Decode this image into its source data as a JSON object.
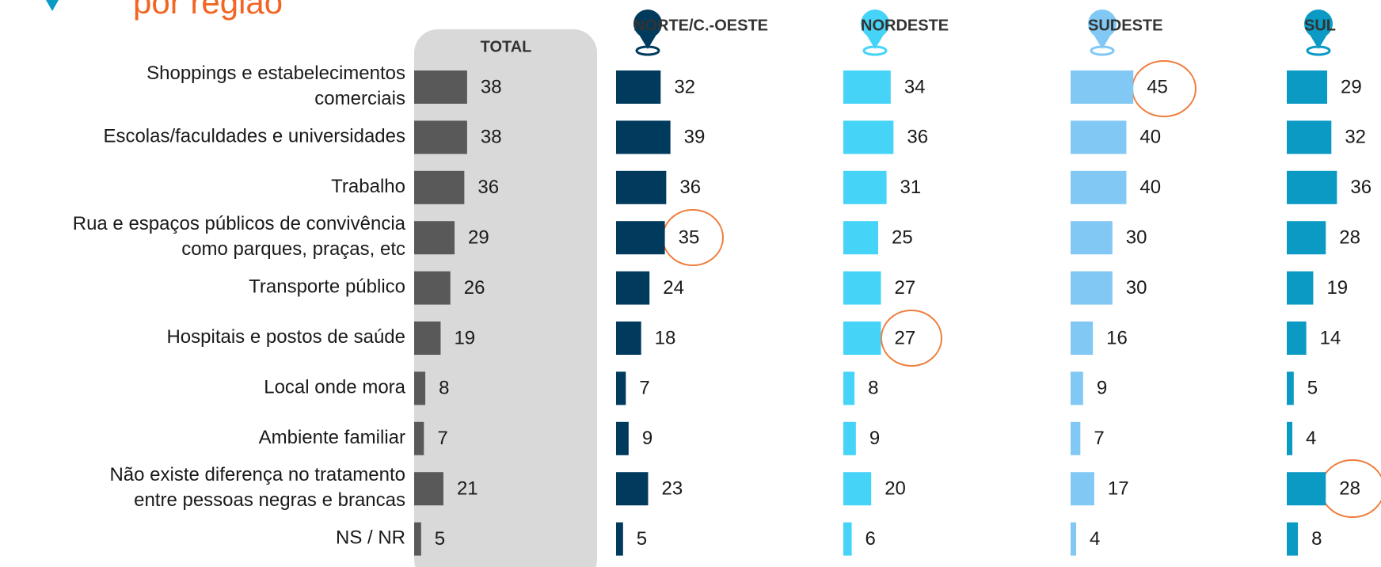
{
  "chart_data": {
    "type": "bar",
    "title": "por região",
    "categories": [
      "Shoppings e estabelecimentos\ncomerciais",
      "Escolas/faculdades e universidades",
      "Trabalho",
      "Rua e espaços públicos de convivência\ncomo parques, praças, etc",
      "Transporte público",
      "Hospitais e postos de saúde",
      "Local onde mora",
      "Ambiente familiar",
      "Não existe diferença no tratamento\nentre pessoas negras e brancas",
      "NS / NR"
    ],
    "series": [
      {
        "name": "TOTAL",
        "color": "#595959",
        "values": [
          38,
          38,
          36,
          29,
          26,
          19,
          8,
          7,
          21,
          5
        ]
      },
      {
        "name": "NORTE/C.-OESTE",
        "color": "#003a5d",
        "values": [
          32,
          39,
          36,
          35,
          24,
          18,
          7,
          9,
          23,
          5
        ]
      },
      {
        "name": "NORDESTE",
        "color": "#45d4f8",
        "values": [
          34,
          36,
          31,
          25,
          27,
          27,
          8,
          9,
          20,
          6
        ]
      },
      {
        "name": "SUDESTE",
        "color": "#82c8f5",
        "values": [
          45,
          40,
          40,
          30,
          30,
          16,
          9,
          7,
          17,
          4
        ]
      },
      {
        "name": "SUL",
        "color": "#0a9ac4",
        "values": [
          29,
          32,
          36,
          28,
          19,
          14,
          5,
          4,
          28,
          8
        ]
      }
    ]
  }
}
